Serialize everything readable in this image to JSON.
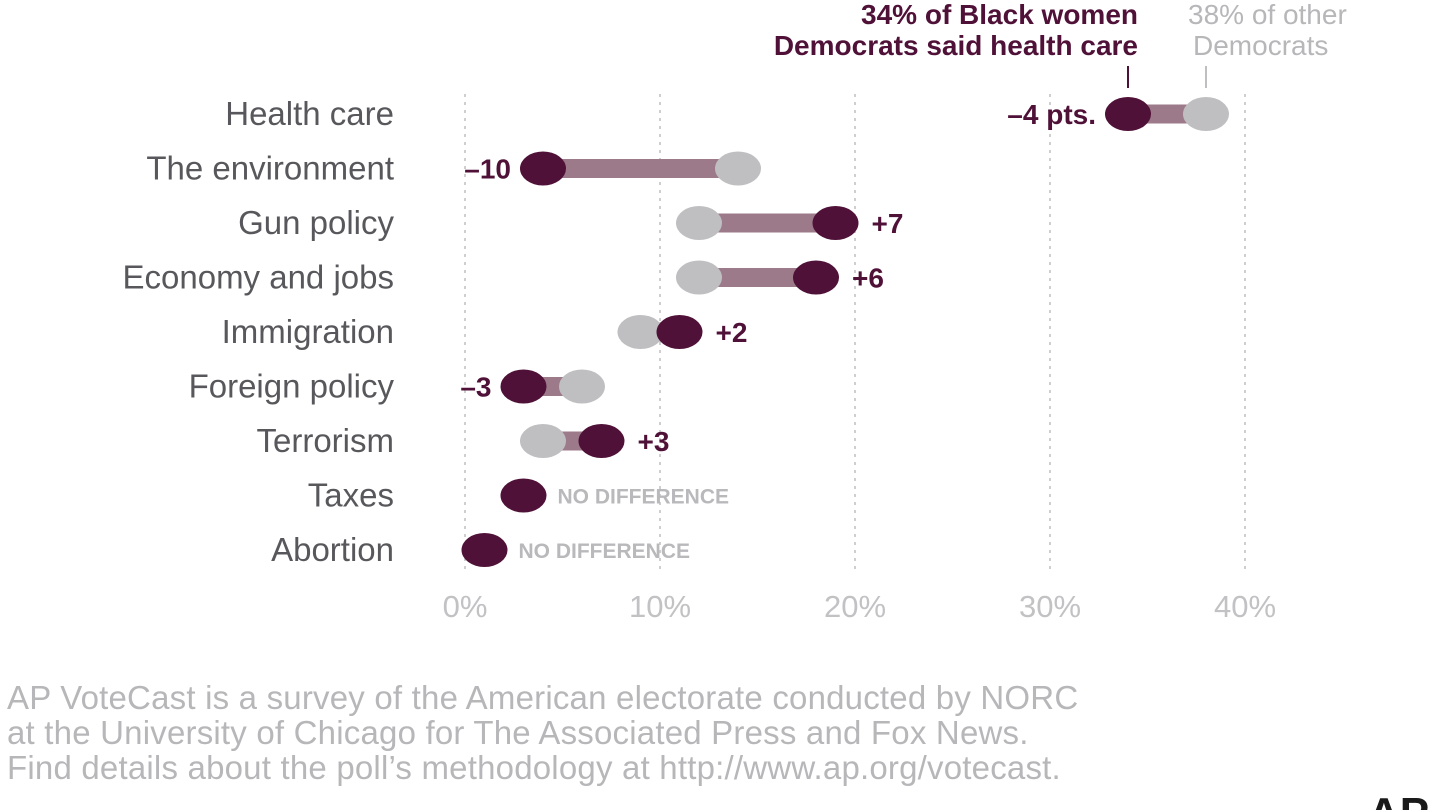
{
  "colors": {
    "black_women": "#4f1137",
    "other_democrats": "#bfbfc2",
    "connector": "#9c7a8a",
    "grid": "#cfcfd2",
    "category_text": "#58585c",
    "tick_text": "#c2c2c5",
    "no_difference_text": "#b9b9bc"
  },
  "chart_data": {
    "type": "dumbbell",
    "categories": [
      "Health care",
      "The environment",
      "Gun policy",
      "Economy and jobs",
      "Immigration",
      "Foreign policy",
      "Terrorism",
      "Taxes",
      "Abortion"
    ],
    "series": [
      {
        "name": "Black women Democrats",
        "values": [
          34,
          4,
          19,
          18,
          11,
          3,
          7,
          3,
          1
        ]
      },
      {
        "name": "other Democrats",
        "values": [
          38,
          14,
          12,
          12,
          9,
          6,
          4,
          3,
          1
        ]
      }
    ],
    "difference_labels": [
      "–4 pts.",
      "–10",
      "+7",
      "+6",
      "+2",
      "–3",
      "+3",
      "NO DIFFERENCE",
      "NO DIFFERENCE"
    ],
    "xlim": [
      0,
      40
    ],
    "x_ticks": [
      0,
      10,
      20,
      30,
      40
    ],
    "x_tick_labels": [
      "0%",
      "10%",
      "20%",
      "30%",
      "40%"
    ],
    "grid": true,
    "annotations": {
      "black_women": [
        "34% of Black women",
        "Democrats said health care"
      ],
      "other": [
        "38% of other",
        "Democrats"
      ]
    }
  },
  "footnote": {
    "lines": [
      "AP VoteCast is a survey of the American electorate conducted by NORC",
      "at the University of Chicago for The Associated Press and Fox News.",
      "Find details about the poll’s methodology at http://www.ap.org/votecast."
    ]
  },
  "logo": {
    "text": "AP"
  }
}
